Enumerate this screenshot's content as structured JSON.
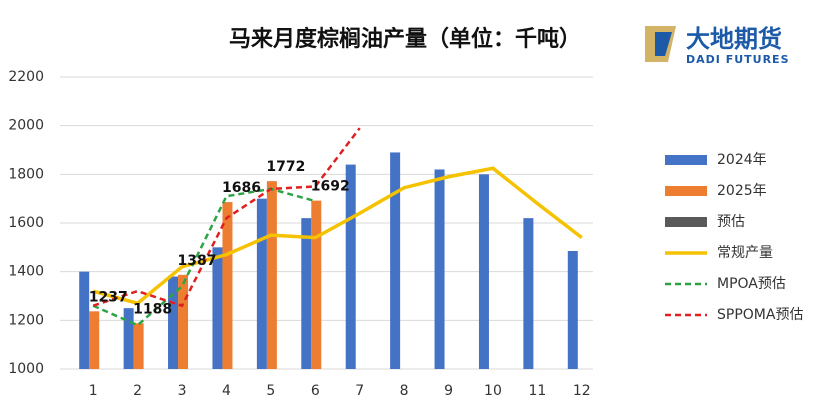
{
  "chart_data": {
    "type": "bar",
    "title": "马来月度棕榈油产量（单位：千吨）",
    "logo": {
      "name": "大地期货",
      "subtitle": "DADI FUTURES"
    },
    "categories": [
      "1",
      "2",
      "3",
      "4",
      "5",
      "6",
      "7",
      "8",
      "9",
      "10",
      "11",
      "12"
    ],
    "series": [
      {
        "name": "2024年",
        "type": "bar",
        "color": "#4472c4",
        "values": [
          1400,
          1250,
          1380,
          1500,
          1700,
          1620,
          1840,
          1890,
          1820,
          1800,
          1620,
          1485
        ]
      },
      {
        "name": "2025年",
        "type": "bar",
        "color": "#ed7d31",
        "values": [
          1237,
          1188,
          1387,
          1686,
          1772,
          1692,
          null,
          null,
          null,
          null,
          null,
          null
        ],
        "show_labels": true
      },
      {
        "name": "预估",
        "type": "bar",
        "color": "#595959",
        "values": [
          null,
          null,
          null,
          null,
          null,
          null,
          null,
          null,
          null,
          null,
          null,
          null
        ]
      },
      {
        "name": "常规产量",
        "type": "line",
        "color": "#f5c200",
        "dash": false,
        "values": [
          1320,
          1270,
          1420,
          1470,
          1550,
          1540,
          1640,
          1745,
          1790,
          1825,
          1680,
          1540
        ]
      },
      {
        "name": "MPOA预估",
        "type": "line",
        "color": "#2ca444",
        "dash": true,
        "values": [
          1260,
          1180,
          1340,
          1710,
          1740,
          1690,
          null,
          null,
          null,
          null,
          null,
          null
        ]
      },
      {
        "name": "SPPOMA预估",
        "type": "line",
        "color": "#e02020",
        "dash": true,
        "values": [
          1260,
          1320,
          1260,
          1620,
          1740,
          1750,
          1990,
          null,
          null,
          null,
          null,
          null
        ]
      }
    ],
    "ylim": [
      1000,
      2200
    ],
    "yticks": [
      1000,
      1200,
      1400,
      1600,
      1800,
      2000,
      2200
    ],
    "grid": true,
    "legend": "right"
  }
}
